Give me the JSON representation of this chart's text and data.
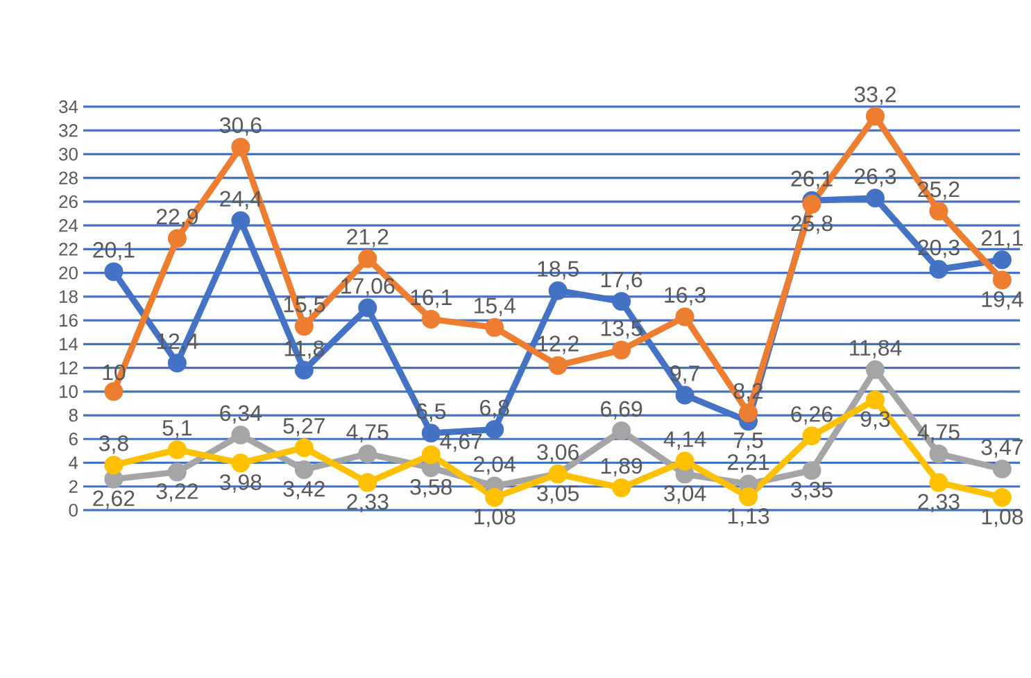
{
  "chart_data": {
    "type": "line",
    "categories": [
      null,
      null,
      null,
      null,
      null,
      null,
      null,
      null,
      null,
      null,
      null,
      null,
      null,
      null,
      null
    ],
    "series": [
      {
        "color": "#4472c4",
        "values": [
          20.1,
          12.4,
          24.4,
          11.8,
          17.06,
          6.5,
          6.8,
          18.5,
          17.6,
          9.7,
          7.5,
          26.1,
          26.3,
          20.3,
          21.1
        ],
        "value_labels": [
          "20,1",
          "12,4",
          "24,4",
          "11,8",
          "17,06",
          "6,5",
          "6,8",
          "18,5",
          "17,6",
          "9,7",
          "7,5",
          "26,1",
          "26,3",
          "20,3",
          "21,1"
        ]
      },
      {
        "color": "#ed7d31",
        "values": [
          10,
          22.9,
          30.6,
          15.5,
          21.2,
          16.1,
          15.4,
          12.2,
          13.5,
          16.3,
          8.2,
          25.8,
          33.2,
          25.2,
          19.4
        ],
        "value_labels": [
          "10",
          "22,9",
          "30,6",
          "15,5",
          "21,2",
          "16,1",
          "15,4",
          "12,2",
          "13,5",
          "16,3",
          "8,2",
          "25,8",
          "33,2",
          "25,2",
          "19,4"
        ]
      },
      {
        "color": "#a5a5a5",
        "values": [
          2.62,
          3.22,
          6.34,
          3.42,
          4.75,
          3.58,
          2.04,
          3.06,
          6.69,
          3.04,
          2.21,
          3.35,
          11.84,
          4.75,
          3.47
        ],
        "value_labels": [
          "2,62",
          "3,22",
          "6,34",
          "3,42",
          "4,75",
          "3,58",
          "2,04",
          "3,06",
          "6,69",
          "3,04",
          "2,21",
          "3,35",
          "11,84",
          "4,75",
          "3,47"
        ]
      },
      {
        "color": "#ffc000",
        "values": [
          3.8,
          5.1,
          3.98,
          5.27,
          2.33,
          4.67,
          1.08,
          3.05,
          1.89,
          4.14,
          1.13,
          6.26,
          9.3,
          2.33,
          1.08
        ],
        "value_labels": [
          "3,8",
          "5,1",
          "3,98",
          "5,27",
          "2,33",
          "4,67",
          "1,08",
          "3,05",
          "1,89",
          "4,14",
          "1,13",
          "6,26",
          "9,3",
          "2,33",
          "1,08"
        ]
      }
    ],
    "ylim": [
      0,
      34
    ],
    "yticks": [
      0,
      2,
      4,
      6,
      8,
      10,
      12,
      14,
      16,
      18,
      20,
      22,
      24,
      26,
      28,
      30,
      32,
      34
    ],
    "grid": "y",
    "legend": false,
    "marker": "circle",
    "line_style": "solid"
  }
}
